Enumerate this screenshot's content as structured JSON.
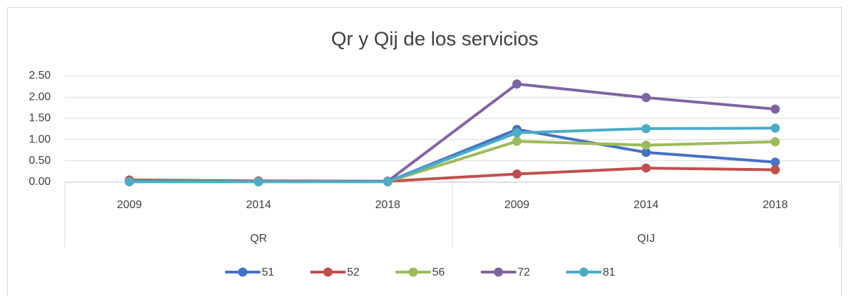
{
  "chart_data": {
    "type": "line",
    "title": "Qr y Qij de los servicios",
    "category_groups": [
      {
        "name": "QR",
        "categories": [
          "2009",
          "2014",
          "2018"
        ]
      },
      {
        "name": "QIJ",
        "categories": [
          "2009",
          "2014",
          "2018"
        ]
      }
    ],
    "series": [
      {
        "name": "51",
        "color": "#4472c4",
        "values": [
          0.01,
          0.01,
          0.01,
          1.24,
          0.7,
          0.47
        ]
      },
      {
        "name": "52",
        "color": "#c0504d",
        "values": [
          0.05,
          0.03,
          0.02,
          0.19,
          0.33,
          0.29
        ]
      },
      {
        "name": "56",
        "color": "#9bbb59",
        "values": [
          0.01,
          0.01,
          0.01,
          0.96,
          0.87,
          0.95
        ]
      },
      {
        "name": "72",
        "color": "#8064a2",
        "values": [
          0.01,
          0.01,
          0.02,
          2.31,
          1.99,
          1.72
        ]
      },
      {
        "name": "81",
        "color": "#4bacc6",
        "values": [
          0.01,
          0.01,
          0.01,
          1.16,
          1.26,
          1.27
        ]
      }
    ],
    "ylim": [
      0,
      2.5
    ],
    "yticks": [
      {
        "value": 0,
        "label": "0.00"
      },
      {
        "value": 0.5,
        "label": "0.50"
      },
      {
        "value": 1,
        "label": "1.00"
      },
      {
        "value": 1.5,
        "label": "1.50"
      },
      {
        "value": 2,
        "label": "2.00"
      },
      {
        "value": 2.5,
        "label": "2.50"
      }
    ],
    "grid": true,
    "legend": "bottom"
  }
}
